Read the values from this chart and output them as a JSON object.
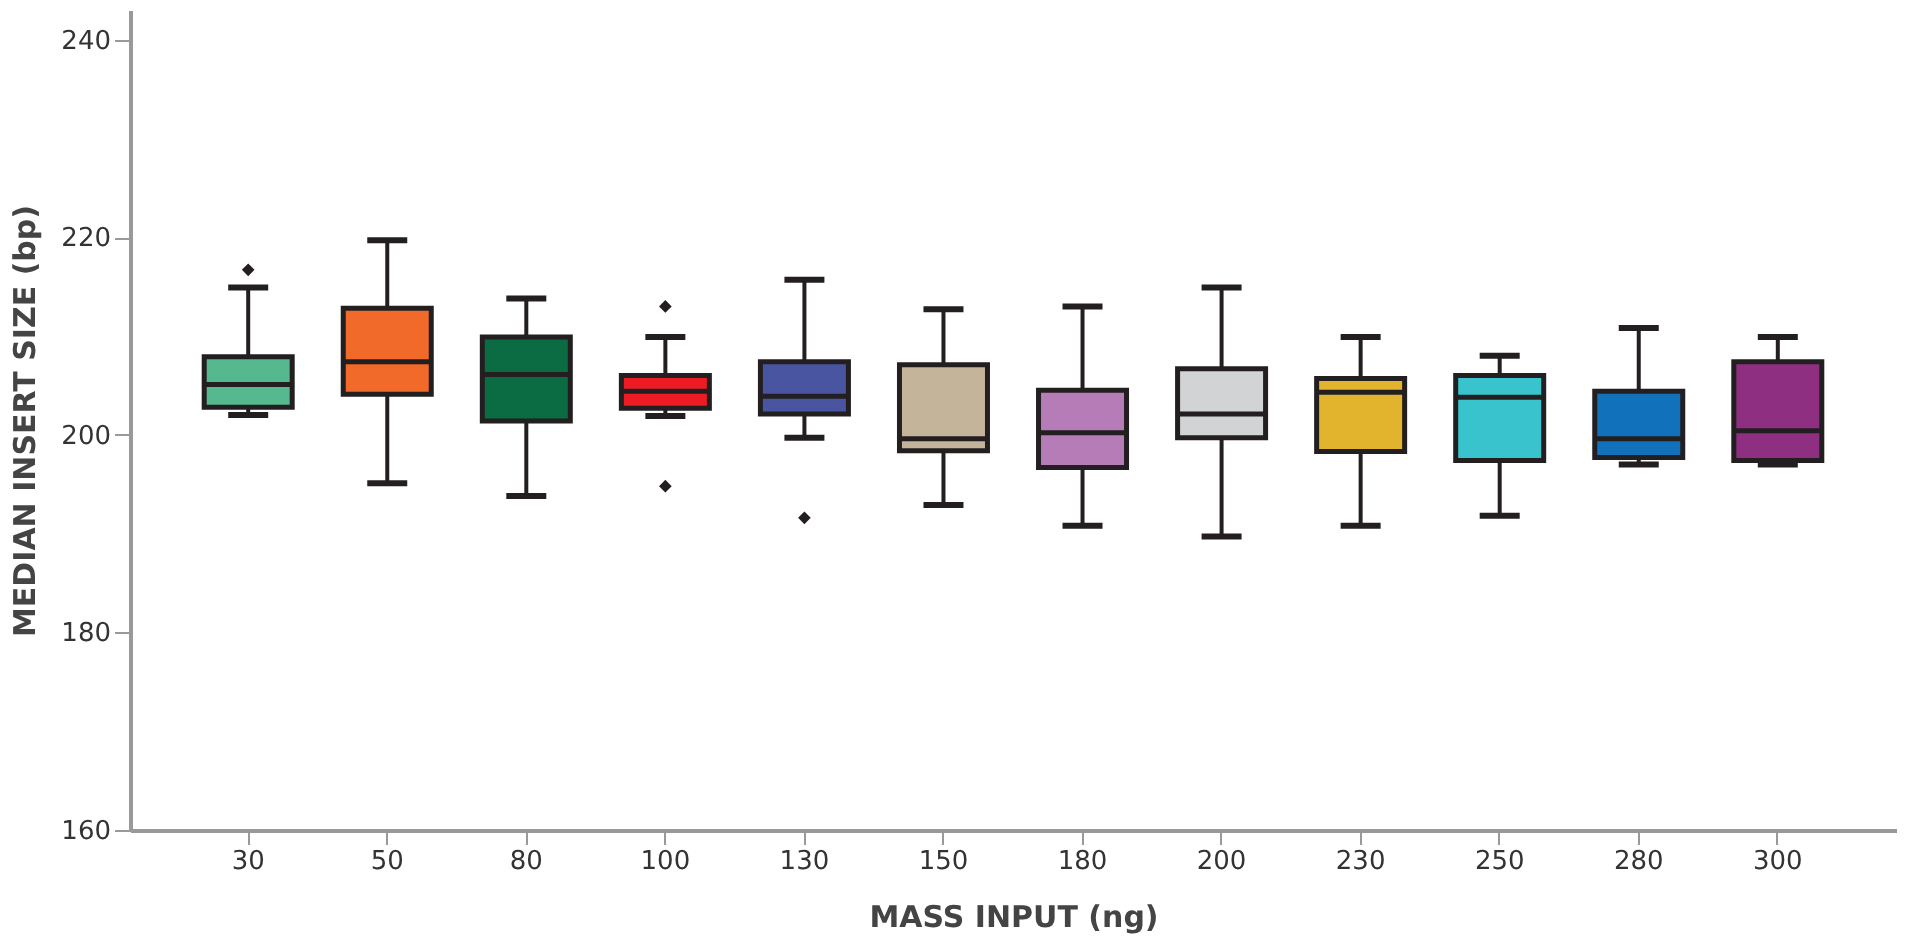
{
  "chart_data": {
    "type": "box",
    "xlabel": "MASS INPUT (ng)",
    "ylabel": "MEDIAN INSERT SIZE (bp)",
    "categories": [
      "30",
      "50",
      "80",
      "100",
      "130",
      "150",
      "180",
      "200",
      "230",
      "250",
      "280",
      "300"
    ],
    "colors": [
      "#55b88e",
      "#f26a2a",
      "#0b6b42",
      "#ed1c24",
      "#4a55a2",
      "#c4b49a",
      "#b57cb8",
      "#d1d3d4",
      "#e2b42e",
      "#39c3cc",
      "#1172bb",
      "#8e2f82"
    ],
    "boxes": [
      {
        "low": 202,
        "q1": 202.8,
        "median": 205.1,
        "q3": 207.9,
        "high": 214.9,
        "outliers": [
          216.7
        ]
      },
      {
        "low": 195.1,
        "q1": 204.1,
        "median": 207.4,
        "q3": 212.8,
        "high": 219.7
      },
      {
        "low": 193.8,
        "q1": 201.4,
        "median": 206.1,
        "q3": 209.9,
        "high": 213.8
      },
      {
        "low": 201.9,
        "q1": 202.7,
        "median": 204.4,
        "q3": 206,
        "high": 209.9,
        "outliers": [
          213,
          194.8
        ]
      },
      {
        "low": 199.7,
        "q1": 202.1,
        "median": 203.9,
        "q3": 207.4,
        "high": 215.7,
        "outliers": [
          191.6
        ]
      },
      {
        "low": 192.9,
        "q1": 198.4,
        "median": 199.6,
        "q3": 207.1,
        "high": 212.7
      },
      {
        "low": 190.8,
        "q1": 196.7,
        "median": 200.2,
        "q3": 204.5,
        "high": 213
      },
      {
        "low": 189.7,
        "q1": 199.7,
        "median": 202.1,
        "q3": 206.7,
        "high": 214.9
      },
      {
        "low": 190.8,
        "q1": 198.3,
        "median": 204.3,
        "q3": 205.7,
        "high": 209.9
      },
      {
        "low": 191.8,
        "q1": 197.4,
        "median": 203.8,
        "q3": 206,
        "high": 208
      },
      {
        "low": 197,
        "q1": 197.7,
        "median": 199.6,
        "q3": 204.4,
        "high": 210.8
      },
      {
        "low": 197,
        "q1": 197.4,
        "median": 200.4,
        "q3": 207.4,
        "high": 209.9
      }
    ],
    "ylim": [
      160,
      243
    ],
    "yticks": [
      160,
      180,
      200,
      220,
      240
    ],
    "grid": false,
    "legend": false
  }
}
